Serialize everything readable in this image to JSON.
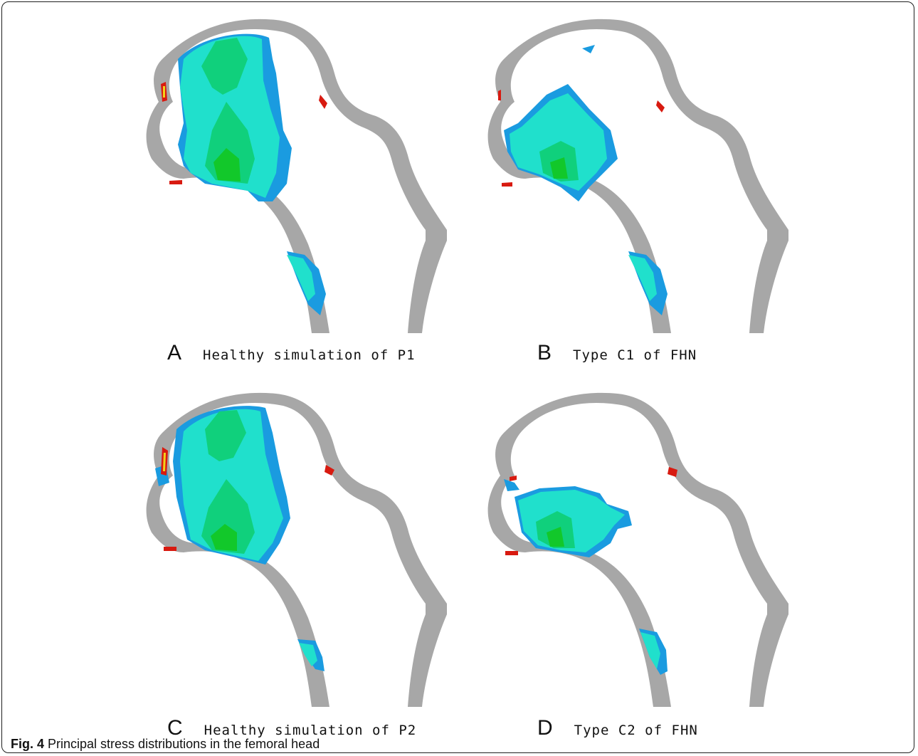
{
  "figure": {
    "caption_label": "Fig. 4",
    "caption_text": "Principal stress distributions in the femoral head"
  },
  "panels": [
    {
      "letter": "A",
      "label": "Healthy simulation of P1"
    },
    {
      "letter": "B",
      "label": "Type C1 of FHN"
    },
    {
      "letter": "C",
      "label": "Healthy simulation of P2"
    },
    {
      "letter": "D",
      "label": "Type C2 of FHN"
    }
  ],
  "colors": {
    "cortex": "#a7a7a7",
    "stress_low": "#1a9be0",
    "stress_mid": "#20e0cc",
    "stress_high": "#10d07c",
    "stress_peak": "#12c82a",
    "hotspot_red": "#d81a10",
    "hotspot_yellow": "#f2d21a"
  }
}
